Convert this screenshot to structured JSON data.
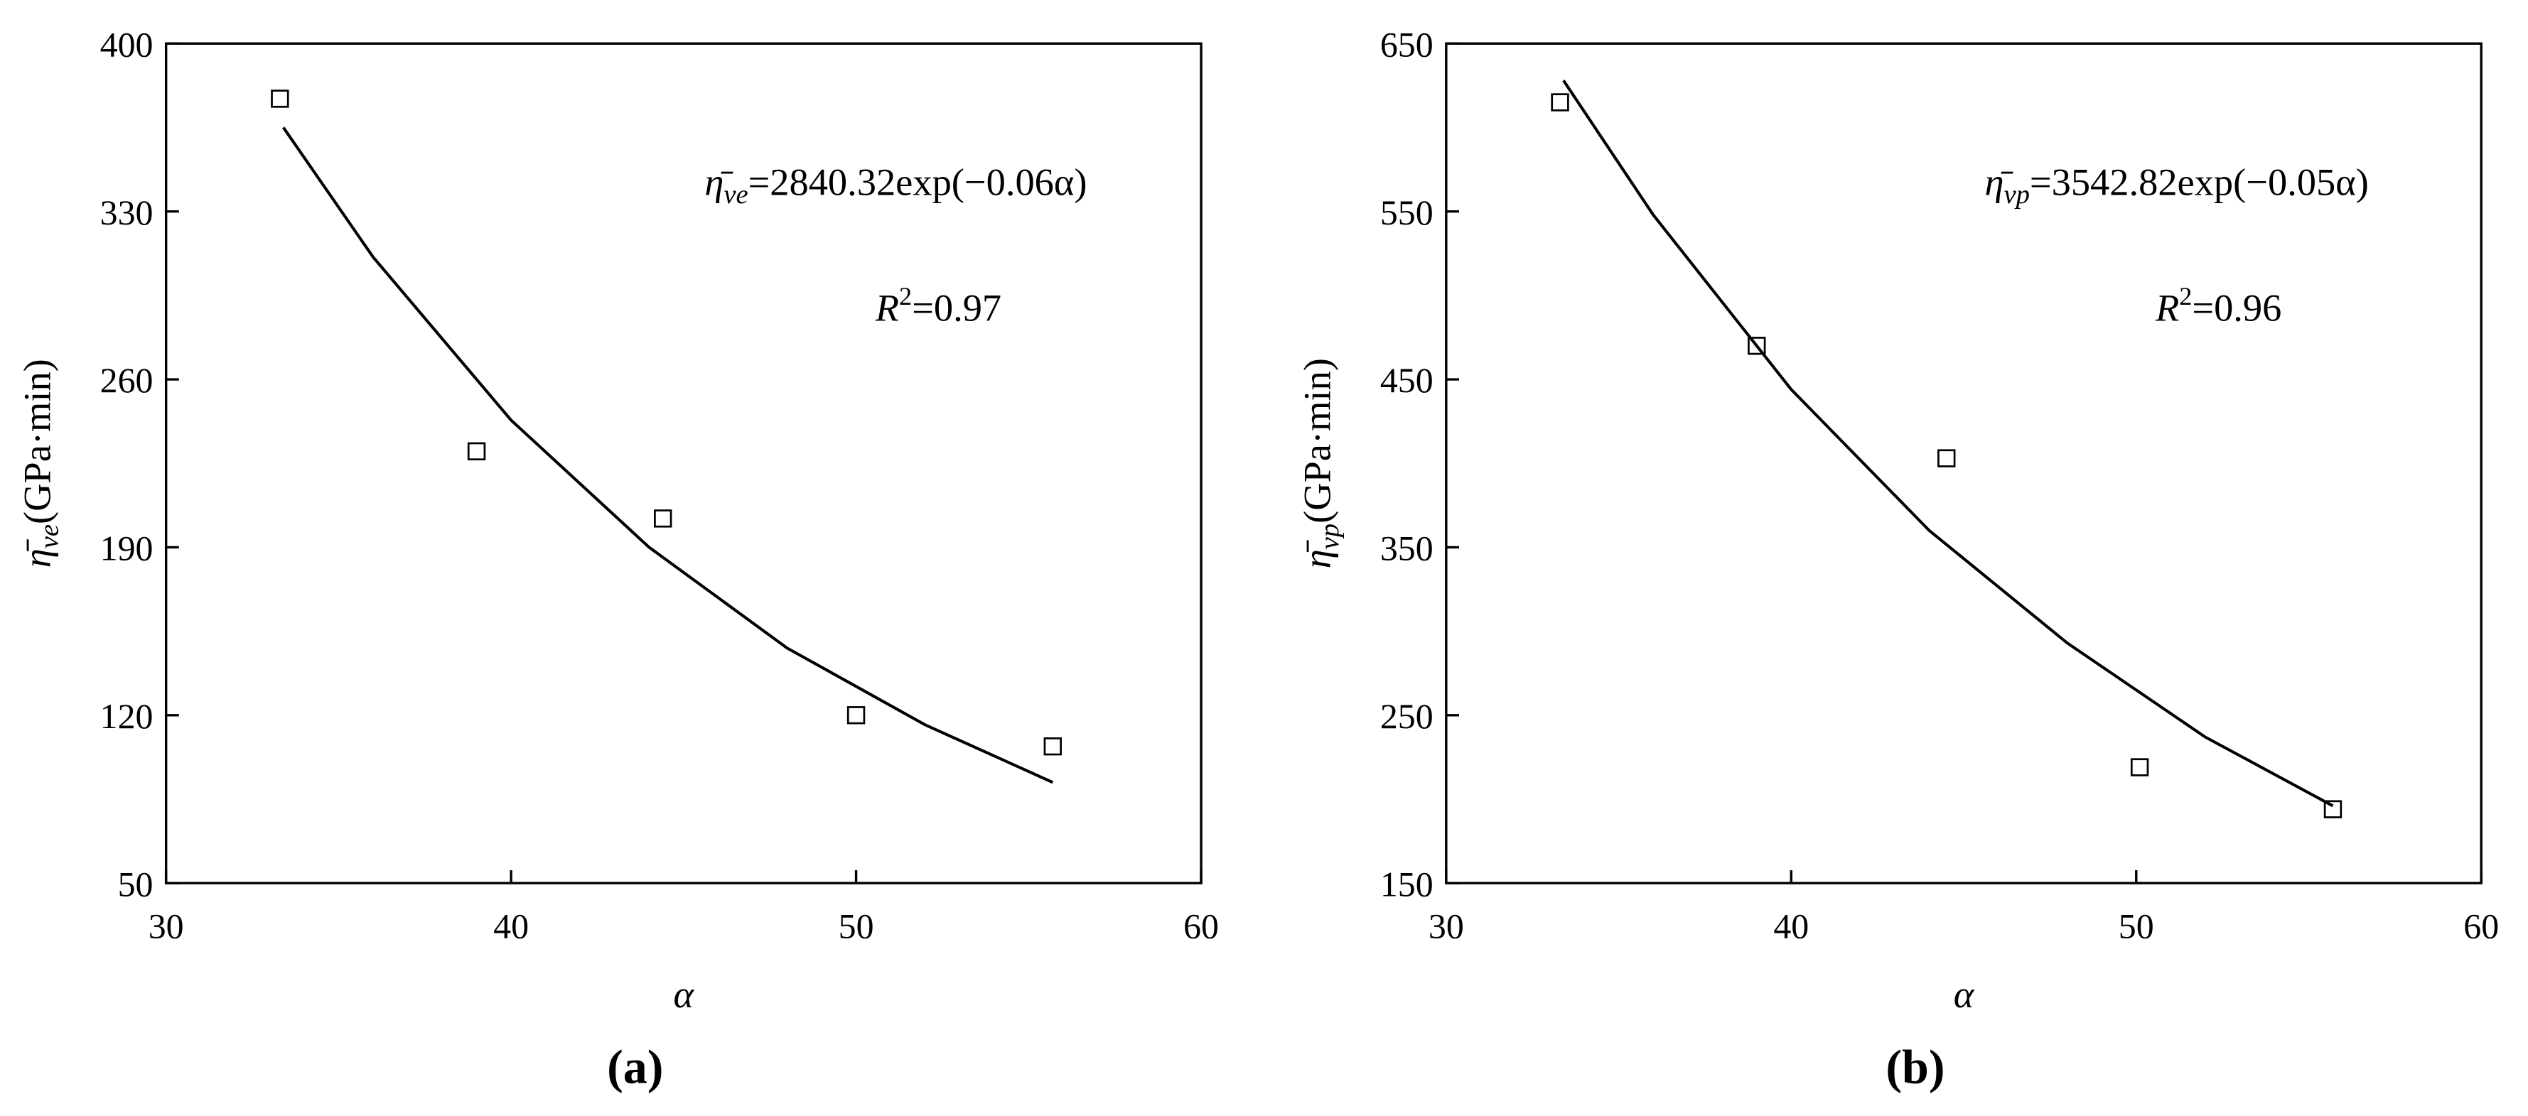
{
  "chart_data": [
    {
      "type": "scatter",
      "panel_label": "(a)",
      "x_label": "α",
      "y_label": {
        "symbol": "η̄",
        "subscript": "ve",
        "text": "(GPa·min)"
      },
      "equation": {
        "symbol": "η̄",
        "subscript": "ve",
        "text": "=2840.32exp(−0.06α)"
      },
      "r_squared": {
        "symbol": "R",
        "superscript": "2",
        "text": "=0.97"
      },
      "xlim": [
        30,
        60
      ],
      "xticks": [
        30,
        40,
        50,
        60
      ],
      "ylim": [
        50,
        400
      ],
      "yticks": [
        50,
        120,
        190,
        260,
        330,
        400
      ],
      "color": "#000000",
      "points": {
        "x": [
          33.3,
          39.0,
          44.4,
          50.0,
          55.7
        ],
        "y": [
          377,
          230,
          202,
          120,
          107
        ]
      },
      "fit": {
        "x": [
          33.4,
          36,
          40,
          44,
          48,
          52,
          55.7
        ],
        "y": [
          365,
          311,
          243,
          190,
          148,
          116,
          92
        ]
      }
    },
    {
      "type": "scatter",
      "panel_label": "(b)",
      "x_label": "α",
      "y_label": {
        "symbol": "η̄",
        "subscript": "vp",
        "text": "(GPa·min)"
      },
      "equation": {
        "symbol": "η̄",
        "subscript": "vp",
        "text": "=3542.82exp(−0.05α)"
      },
      "r_squared": {
        "symbol": "R",
        "superscript": "2",
        "text": "=0.96"
      },
      "xlim": [
        30,
        60
      ],
      "xticks": [
        30,
        40,
        50,
        60
      ],
      "ylim": [
        150,
        650
      ],
      "yticks": [
        150,
        250,
        350,
        450,
        550,
        650
      ],
      "color": "#000000",
      "points": {
        "x": [
          33.3,
          39.0,
          44.5,
          50.1,
          55.7
        ],
        "y": [
          615,
          470,
          403,
          219,
          194
        ]
      },
      "fit": {
        "x": [
          33.4,
          36,
          40,
          44,
          48,
          52,
          55.7
        ],
        "y": [
          628,
          548,
          444,
          360,
          293,
          237,
          196
        ]
      }
    }
  ]
}
